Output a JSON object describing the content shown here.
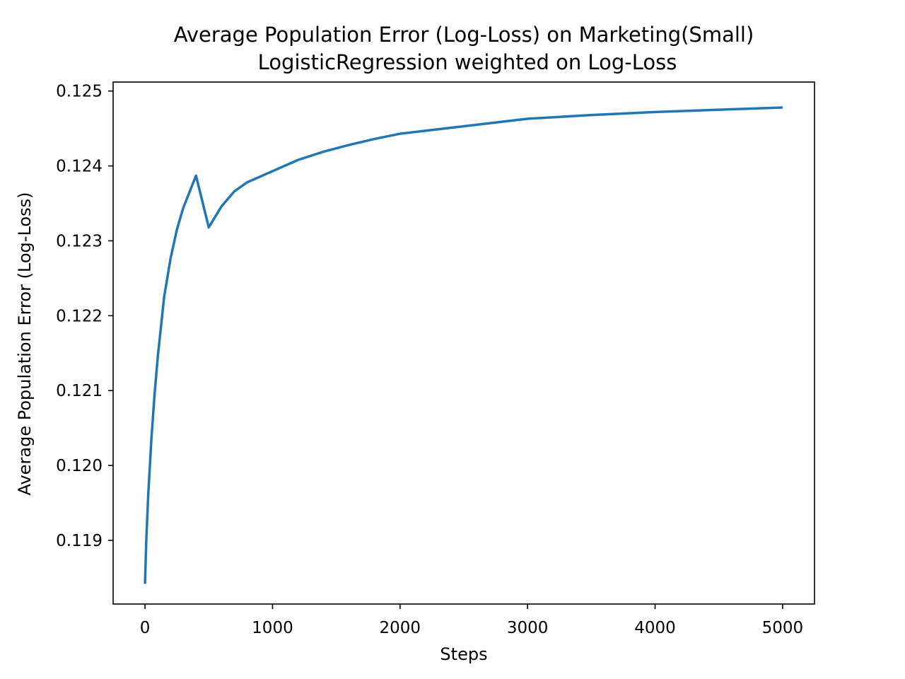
{
  "chart_data": {
    "type": "line",
    "title": "Average Population Error (Log-Loss) on Marketing(Small)",
    "subtitle": "LogisticRegression weighted on Log-Loss",
    "xlabel": "Steps",
    "ylabel": "Average Population Error (Log-Loss)",
    "xlim": [
      -250,
      5250
    ],
    "ylim": [
      0.11815,
      0.12512
    ],
    "x_ticks": [
      0,
      1000,
      2000,
      3000,
      4000,
      5000
    ],
    "x_tick_labels": [
      "0",
      "1000",
      "2000",
      "3000",
      "4000",
      "5000"
    ],
    "y_ticks": [
      0.119,
      0.12,
      0.121,
      0.122,
      0.123,
      0.124,
      0.125
    ],
    "y_tick_labels": [
      "0.119",
      "0.120",
      "0.121",
      "0.122",
      "0.123",
      "0.124",
      "0.125"
    ],
    "grid": false,
    "line_color": "#1f77b4",
    "series": [
      {
        "x": [
          0,
          10,
          25,
          50,
          75,
          100,
          150,
          200,
          250,
          300,
          400,
          500,
          600,
          700,
          800,
          1000,
          1200,
          1400,
          1600,
          1800,
          2000,
          2500,
          3000,
          3500,
          4000,
          4500,
          5000
        ],
        "values": [
          0.11842,
          0.119,
          0.1196,
          0.12035,
          0.12095,
          0.12145,
          0.12225,
          0.12276,
          0.12315,
          0.12344,
          0.12387,
          0.12318,
          0.12346,
          0.12366,
          0.12378,
          0.12393,
          0.12408,
          0.12419,
          0.12428,
          0.12436,
          0.12443,
          0.12453,
          0.12463,
          0.12468,
          0.12472,
          0.12475,
          0.12478
        ]
      }
    ]
  }
}
